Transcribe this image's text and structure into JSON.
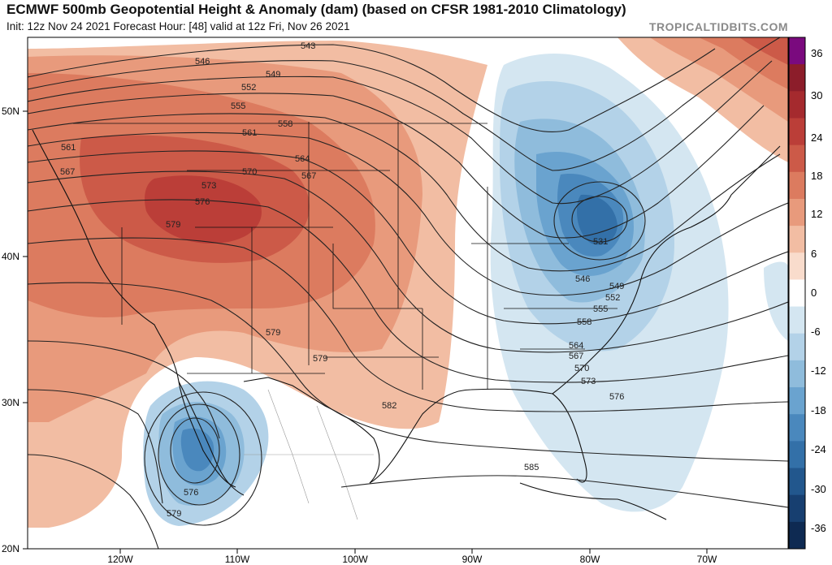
{
  "header": {
    "title": "ECMWF 500mb Geopotential Height & Anomaly (dam) (based on CFSR 1981-2010 Climatology)",
    "subtitle": "Init: 12z Nov 24 2021   Forecast Hour: [48]   valid at 12z Fri, Nov 26 2021",
    "brand": "TROPICALTIDBITS.COM"
  },
  "axes": {
    "lat_labels": [
      "50N",
      "40N",
      "30N",
      "20N"
    ],
    "lon_labels": [
      "120W",
      "110W",
      "100W",
      "90W",
      "80W",
      "70W"
    ]
  },
  "colorbar": {
    "labels": [
      "36",
      "30",
      "24",
      "18",
      "12",
      "6",
      "0",
      "-6",
      "-12",
      "-18",
      "-24",
      "-30",
      "-36"
    ],
    "colors": [
      "#7a0a7e",
      "#8c1d2a",
      "#a52a2e",
      "#bb3e38",
      "#cc5a48",
      "#dc7b5f",
      "#e89a7c",
      "#f2bda3",
      "#f9dccc",
      "#ffffff",
      "#d4e6f1",
      "#b3d2e8",
      "#8fbcdc",
      "#6aa3cf",
      "#4a88bd",
      "#3370a8",
      "#22578d",
      "#173f70",
      "#0e2a52"
    ]
  },
  "contour_labels": [
    "543",
    "546",
    "549",
    "552",
    "555",
    "558",
    "561",
    "561",
    "564",
    "567",
    "567",
    "570",
    "573",
    "576",
    "579",
    "579",
    "579",
    "582",
    "585",
    "531",
    "546",
    "549",
    "552",
    "555",
    "558",
    "564",
    "567",
    "570",
    "573",
    "576",
    "576",
    "579"
  ],
  "features": {
    "trough_low": "531",
    "cutoff_low": "576"
  }
}
